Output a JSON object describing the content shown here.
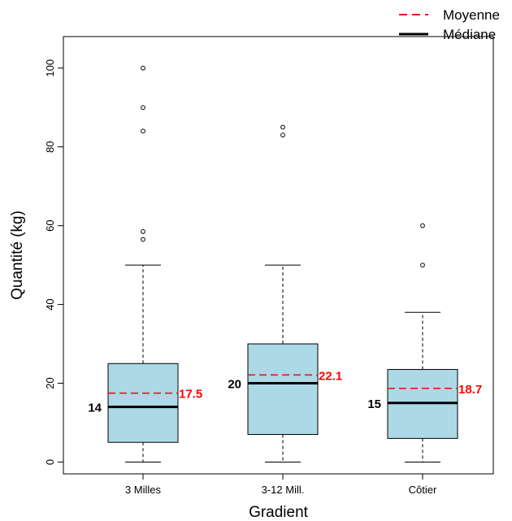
{
  "chart_data": {
    "type": "boxplot",
    "xlabel": "Gradient",
    "ylabel": "Quantité (kg)",
    "ylim": [
      -3,
      108
    ],
    "yticks": [
      0,
      20,
      40,
      60,
      80,
      100
    ],
    "categories": [
      "3 Milles",
      "3-12 Mill.",
      "Côtier"
    ],
    "legend": {
      "placement": "top-right",
      "items": [
        {
          "label": "Moyenne",
          "style": "dashed",
          "color": "#e8141c"
        },
        {
          "label": "Médiane",
          "style": "solid",
          "color": "#000000"
        }
      ]
    },
    "colors": {
      "box_fill": "#add8e6",
      "mean_line": "#e8141c",
      "mean_label": "#ff0000",
      "median_line": "#000000"
    },
    "boxes": [
      {
        "category": "3 Milles",
        "whisker_low": 0,
        "q1": 5,
        "median": 14,
        "q3": 25,
        "whisker_high": 50,
        "mean": 17.5,
        "median_label": "14",
        "mean_label": "17.5",
        "outliers": [
          56.5,
          58.5,
          84,
          90,
          100
        ]
      },
      {
        "category": "3-12 Mill.",
        "whisker_low": 0,
        "q1": 7,
        "median": 20,
        "q3": 30,
        "whisker_high": 50,
        "mean": 22.1,
        "median_label": "20",
        "mean_label": "22.1",
        "outliers": [
          83,
          85
        ]
      },
      {
        "category": "Côtier",
        "whisker_low": 0,
        "q1": 6,
        "median": 15,
        "q3": 23.5,
        "whisker_high": 38,
        "mean": 18.7,
        "median_label": "15",
        "mean_label": "18.7",
        "outliers": [
          50,
          60
        ]
      }
    ]
  }
}
